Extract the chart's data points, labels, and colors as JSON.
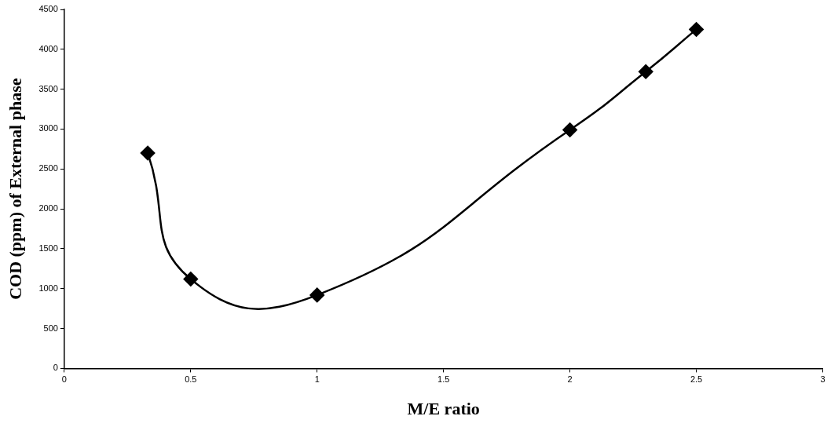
{
  "chart_data": {
    "type": "line",
    "xlabel": "M/E ratio",
    "ylabel": "COD (ppm) of External phase",
    "x": [
      0.33,
      0.5,
      1,
      2,
      2.3,
      2.5
    ],
    "series": [
      {
        "color": "#000000",
        "values": [
          2700,
          1120,
          920,
          2990,
          3720,
          4250
        ]
      }
    ],
    "xlim": [
      0,
      3
    ],
    "xticks": [
      0,
      0.5,
      1,
      1.5,
      2,
      2.5,
      3
    ],
    "ylim": [
      0,
      4500
    ],
    "yticks": [
      0,
      500,
      1000,
      1500,
      2000,
      2500,
      3000,
      3500,
      4000,
      4500
    ],
    "grid": false,
    "legend": false,
    "marker": "diamond",
    "line_style": "solid"
  }
}
